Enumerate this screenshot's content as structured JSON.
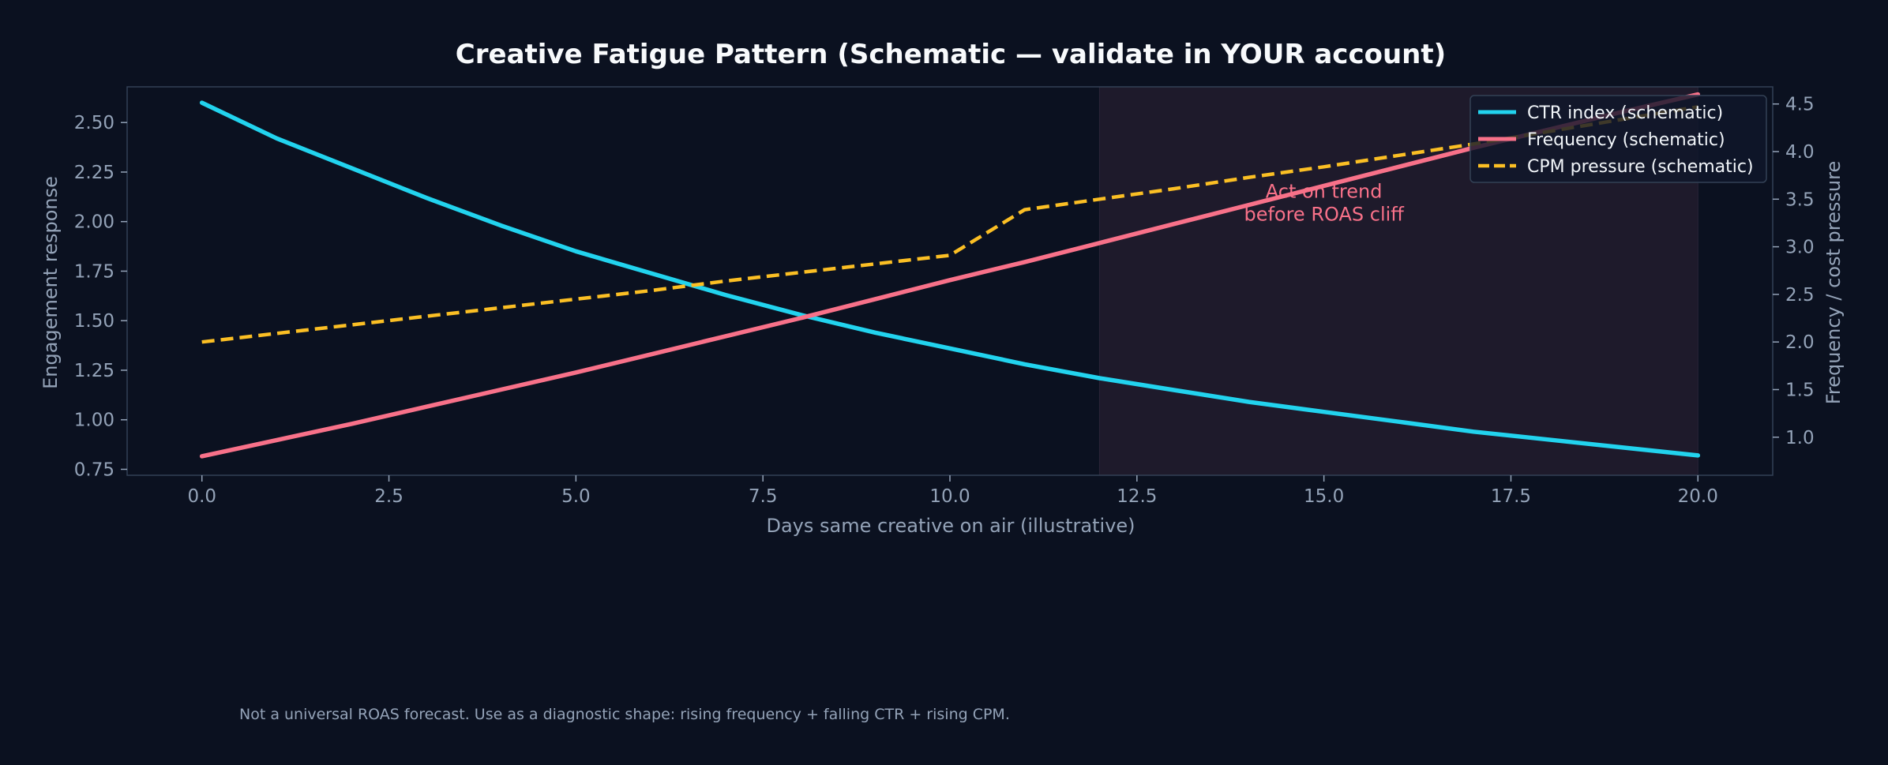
{
  "colors": {
    "background": "#0b1120",
    "plot_background": "#0b1120",
    "axes_frame": "#334155",
    "tick_text": "#94a3b8",
    "title_text": "#f8fafc",
    "ctr": "#22d3ee",
    "frequency": "#f87189",
    "cpm": "#fbbf24",
    "shade": "#1e1a2b",
    "annotation": "#f87189",
    "legend_bg": "#0f172a",
    "legend_border": "#334155",
    "legend_text": "#f1f5f9",
    "footnote": "#94a3b8"
  },
  "chart_data": {
    "type": "line",
    "title": "Creative Fatigue Pattern (Schematic — validate in YOUR account)",
    "xlabel": "Days same creative on air (illustrative)",
    "ylabel_left": "Engagement response",
    "ylabel_right": "Frequency / cost pressure",
    "xlim": [
      -1,
      21
    ],
    "ylim_left": [
      0.72,
      2.68
    ],
    "ylim_right": [
      0.6,
      4.68
    ],
    "x_ticks": [
      0,
      2.5,
      5,
      7.5,
      10,
      12.5,
      15,
      17.5,
      20
    ],
    "x_tick_labels": [
      "0.0",
      "2.5",
      "5.0",
      "7.5",
      "10.0",
      "12.5",
      "15.0",
      "17.5",
      "20.0"
    ],
    "y_left_ticks": [
      0.75,
      1.0,
      1.25,
      1.5,
      1.75,
      2.0,
      2.25,
      2.5
    ],
    "y_left_tick_labels": [
      "0.75",
      "1.00",
      "1.25",
      "1.50",
      "1.75",
      "2.00",
      "2.25",
      "2.50"
    ],
    "y_right_ticks": [
      1.0,
      1.5,
      2.0,
      2.5,
      3.0,
      3.5,
      4.0,
      4.5
    ],
    "y_right_tick_labels": [
      "1.0",
      "1.5",
      "2.0",
      "2.5",
      "3.0",
      "3.5",
      "4.0",
      "4.5"
    ],
    "x": [
      0,
      1,
      2,
      3,
      4,
      5,
      6,
      7,
      8,
      9,
      10,
      11,
      12,
      13,
      14,
      15,
      16,
      17,
      18,
      19,
      20
    ],
    "series": [
      {
        "name": "CTR index (schematic)",
        "axis": "left",
        "style": "solid",
        "values": [
          2.6,
          2.42,
          2.27,
          2.12,
          1.98,
          1.85,
          1.74,
          1.63,
          1.53,
          1.44,
          1.36,
          1.28,
          1.21,
          1.15,
          1.09,
          1.04,
          0.99,
          0.94,
          0.9,
          0.86,
          0.82
        ]
      },
      {
        "name": "Frequency (schematic)",
        "axis": "right",
        "style": "solid",
        "values": [
          0.8,
          0.97,
          1.14,
          1.32,
          1.5,
          1.68,
          1.87,
          2.06,
          2.25,
          2.45,
          2.65,
          2.84,
          3.04,
          3.24,
          3.44,
          3.64,
          3.84,
          4.04,
          4.23,
          4.42,
          4.6
        ]
      },
      {
        "name": "CPM pressure (schematic)",
        "axis": "right",
        "style": "dashed",
        "values": [
          2.0,
          2.09,
          2.18,
          2.27,
          2.36,
          2.45,
          2.54,
          2.64,
          2.73,
          2.82,
          2.91,
          3.39,
          3.5,
          3.61,
          3.73,
          3.84,
          3.96,
          4.08,
          4.21,
          4.34,
          4.47
        ]
      }
    ],
    "shaded_region": {
      "x_start": 12,
      "x_end": 20
    },
    "annotation": {
      "lines": [
        "Act on trend",
        "before ROAS cliff"
      ],
      "x": 15,
      "y_right": 3.4
    },
    "legend_position": "top-right",
    "grid": false
  },
  "footnote": "Not a universal ROAS forecast. Use as a diagnostic shape: rising frequency + falling CTR + rising CPM."
}
